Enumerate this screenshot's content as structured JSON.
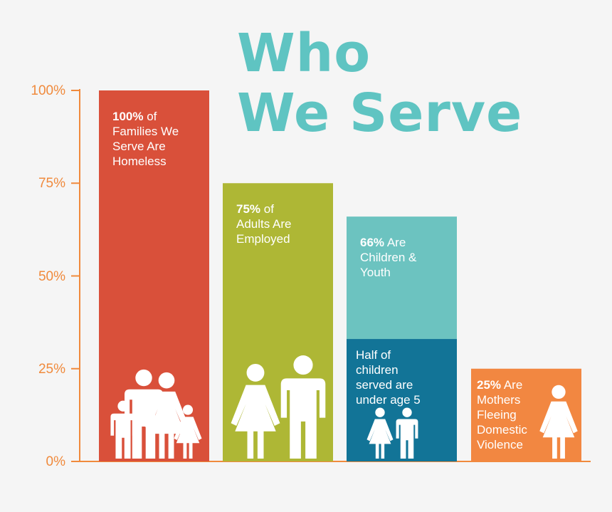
{
  "title": [
    "Who",
    "We Serve"
  ],
  "colors": {
    "title": "#5fc4c2",
    "axis": "#f08a3c",
    "bar_homeless": "#d9503a",
    "bar_employed": "#aeb735",
    "bar_children": "#6cc3c0",
    "bar_under5": "#127497",
    "bar_mothers": "#f28741",
    "background": "#f5f5f5"
  },
  "chart_data": {
    "type": "bar",
    "title": "Who We Serve",
    "ylim": [
      0,
      100
    ],
    "yticks": [
      "0%",
      "25%",
      "50%",
      "75%",
      "100%"
    ],
    "grid": false,
    "legend": "none",
    "bars": [
      {
        "value": 100,
        "label_bold": "100%",
        "label_rest": " of\nFamilies We\nServe Are\nHomeless",
        "color": "#d9503a",
        "icon": "family-icon"
      },
      {
        "value": 75,
        "label_bold": "75%",
        "label_rest": " of\nAdults Are\nEmployed",
        "color": "#aeb735",
        "icon": "adults-icon"
      },
      {
        "value": 66,
        "label_bold": "66%",
        "label_rest": " Are\nChildren &\nYouth",
        "color": "#6cc3c0",
        "icon": "",
        "segment": {
          "value": 33,
          "label": "Half of\nchildren\nserved are\nunder age 5",
          "color": "#127497",
          "icon": "children-icon"
        }
      },
      {
        "value": 25,
        "label_bold": "25%",
        "label_rest": " Are\nMothers\nFleeing\nDomestic\nViolence",
        "color": "#f28741",
        "icon": "mother-icon"
      }
    ]
  }
}
